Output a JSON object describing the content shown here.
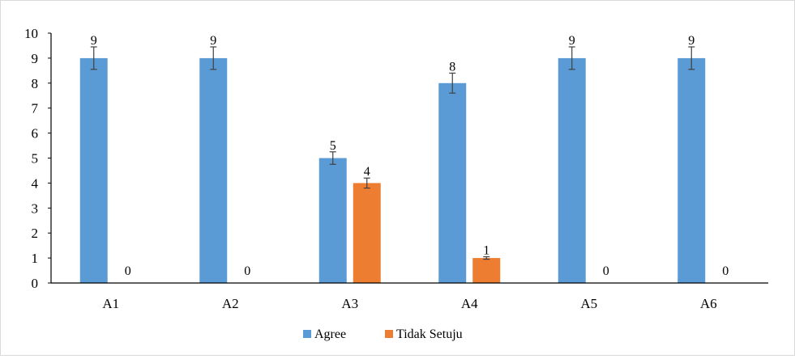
{
  "chart_data": {
    "type": "bar",
    "categories": [
      "A1",
      "A2",
      "A3",
      "A4",
      "A5",
      "A6"
    ],
    "series": [
      {
        "name": "Agree",
        "color": "#5b9bd5",
        "values": [
          9,
          9,
          5,
          8,
          9,
          9
        ],
        "labels": [
          "9",
          "9",
          "5",
          "8",
          "9",
          "9"
        ],
        "error": [
          0.45,
          0.45,
          0.25,
          0.4,
          0.45,
          0.45
        ]
      },
      {
        "name": "Tidak Setuju",
        "color": "#ed7d31",
        "values": [
          0,
          0,
          4,
          1,
          0,
          0
        ],
        "labels": [
          "0",
          "0",
          "4",
          "1",
          "0",
          "0"
        ],
        "error": [
          0,
          0,
          0.2,
          0.05,
          0,
          0
        ]
      }
    ],
    "ylim": [
      0,
      10
    ],
    "yticks": [
      "0",
      "1",
      "2",
      "3",
      "4",
      "5",
      "6",
      "7",
      "8",
      "9",
      "10"
    ],
    "grid": false,
    "legend": "bottom-center"
  }
}
